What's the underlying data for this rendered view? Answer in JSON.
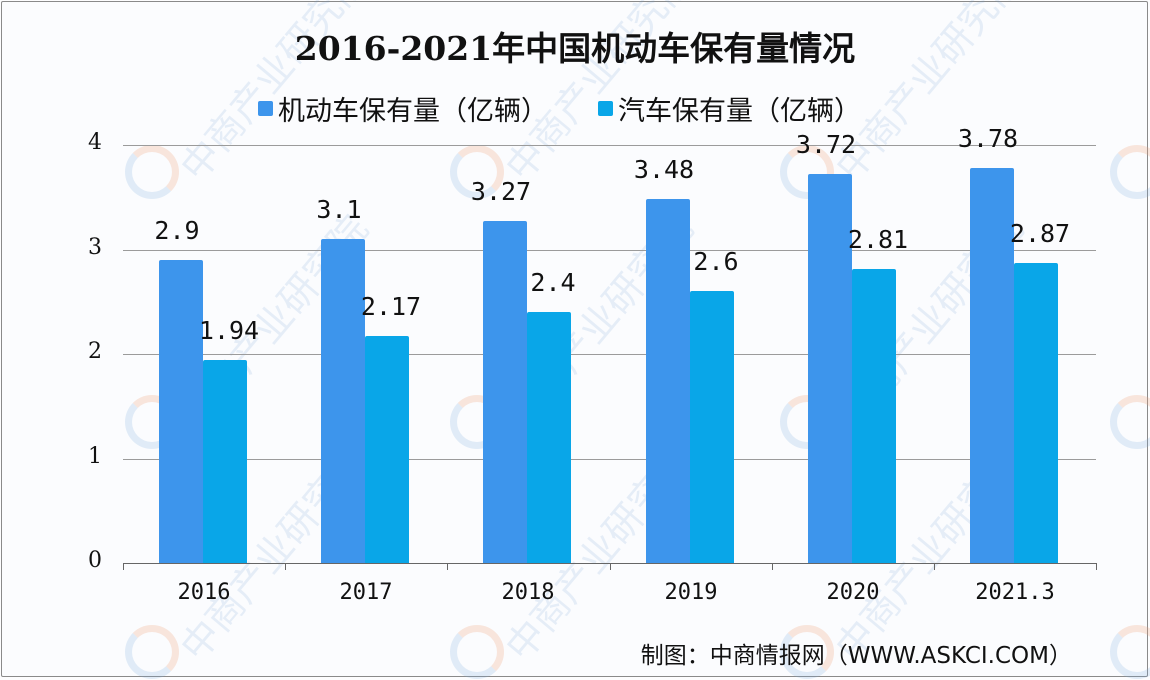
{
  "chart_data": {
    "type": "bar",
    "title": "2016-2021年中国机动车保有量情况",
    "categories": [
      "2016",
      "2017",
      "2018",
      "2019",
      "2020",
      "2021.3"
    ],
    "series": [
      {
        "name": "机动车保有量（亿辆）",
        "color": "#3d95ec",
        "values": [
          2.9,
          3.1,
          3.27,
          3.48,
          3.72,
          3.78
        ],
        "labels": [
          "2.9",
          "3.1",
          "3.27",
          "3.48",
          "3.72",
          "3.78"
        ]
      },
      {
        "name": "汽车保有量（亿辆）",
        "color": "#09a6e8",
        "values": [
          1.94,
          2.17,
          2.4,
          2.6,
          2.81,
          2.87
        ],
        "labels": [
          "1.94",
          "2.17",
          "2.4",
          "2.6",
          "2.81",
          "2.87"
        ]
      }
    ],
    "xlabel": "",
    "ylabel": "",
    "ylim": [
      0,
      4
    ],
    "yticks": [
      "0",
      "1",
      "2",
      "3",
      "4"
    ],
    "grid": true,
    "legend_position": "top"
  },
  "footer": "制图：中商情报网（WWW.ASKCI.COM）",
  "watermark": "中商产业研究院"
}
